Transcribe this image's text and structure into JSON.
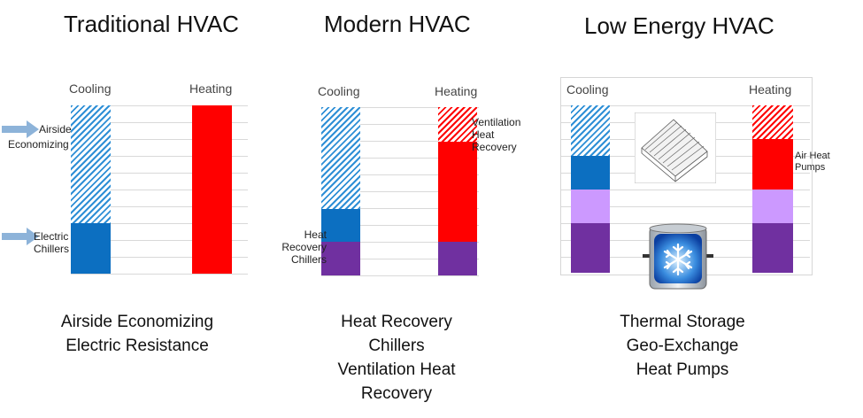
{
  "panels": {
    "traditional": {
      "title": "Traditional HVAC",
      "cooling": "Cooling",
      "heating": "Heating",
      "annotations": {
        "airside": [
          "Airside",
          "Economizing"
        ],
        "electric": [
          "Electric",
          "Chillers"
        ]
      },
      "caption": [
        "Airside Economizing",
        "Electric Resistance"
      ]
    },
    "modern": {
      "title": "Modern HVAC",
      "cooling": "Cooling",
      "heating": "Heating",
      "annotations": {
        "ventilation": [
          "Ventilation",
          "Heat",
          "Recovery"
        ],
        "heat_recovery": [
          "Heat",
          "Recovery",
          "Chillers"
        ]
      },
      "caption": [
        "Heat Recovery",
        "Chillers",
        "Ventilation Heat",
        "Recovery"
      ]
    },
    "low_energy": {
      "title": "Low Energy HVAC",
      "cooling": "Cooling",
      "heating": "Heating",
      "annotations": {
        "air_heat_pumps": [
          "Air Heat",
          "Pumps"
        ]
      },
      "caption": [
        "Thermal Storage",
        "Geo-Exchange",
        "Heat Pumps"
      ]
    }
  },
  "colors": {
    "cooling_hatch": "#2e8fd6",
    "cooling_solid": "#0c6fc1",
    "heating": "#ff0000",
    "recovery": "#7030a0",
    "geo": "#cc99ff",
    "arrow": "#8db3d9"
  },
  "icons": [
    "arrow-right-icon",
    "solar-collector-icon",
    "thermal-storage-tank-icon",
    "snowflake-icon"
  ]
}
